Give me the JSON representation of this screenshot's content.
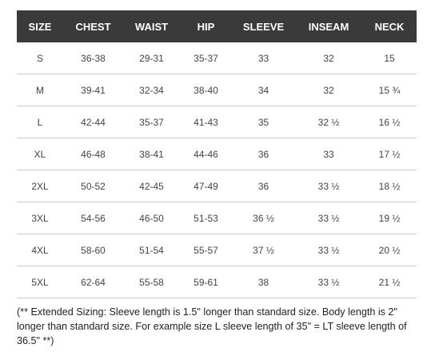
{
  "table": {
    "headers": [
      "SIZE",
      "CHEST",
      "WAIST",
      "HIP",
      "SLEEVE",
      "INSEAM",
      "NECK"
    ],
    "rows": [
      [
        "S",
        "36-38",
        "29-31",
        "35-37",
        "33",
        "32",
        "15"
      ],
      [
        "M",
        "39-41",
        "32-34",
        "38-40",
        "34",
        "32",
        "15 ¾"
      ],
      [
        "L",
        "42-44",
        "35-37",
        "41-43",
        "35",
        "32 ½",
        "16 ½"
      ],
      [
        "XL",
        "46-48",
        "38-41",
        "44-46",
        "36",
        "33",
        "17 ½"
      ],
      [
        "2XL",
        "50-52",
        "42-45",
        "47-49",
        "36",
        "33 ½",
        "18 ½"
      ],
      [
        "3XL",
        "54-56",
        "46-50",
        "51-53",
        "36 ½",
        "33 ½",
        "19 ½"
      ],
      [
        "4XL",
        "58-60",
        "51-54",
        "55-57",
        "37 ½",
        "33 ½",
        "20 ½"
      ],
      [
        "5XL",
        "62-64",
        "55-58",
        "59-61",
        "38",
        "33 ½",
        "21 ½"
      ]
    ]
  },
  "note": "(** Extended Sizing: Sleeve length is 1.5\" longer than standard size. Body length is 2\" longer than standard size. For example size L sleeve length of 35\" = LT sleeve length of 36.5\" **)",
  "colors": {
    "header_bg": "#3a3a3a",
    "header_text": "#ffffff",
    "row_divider": "#c9c9c9"
  }
}
